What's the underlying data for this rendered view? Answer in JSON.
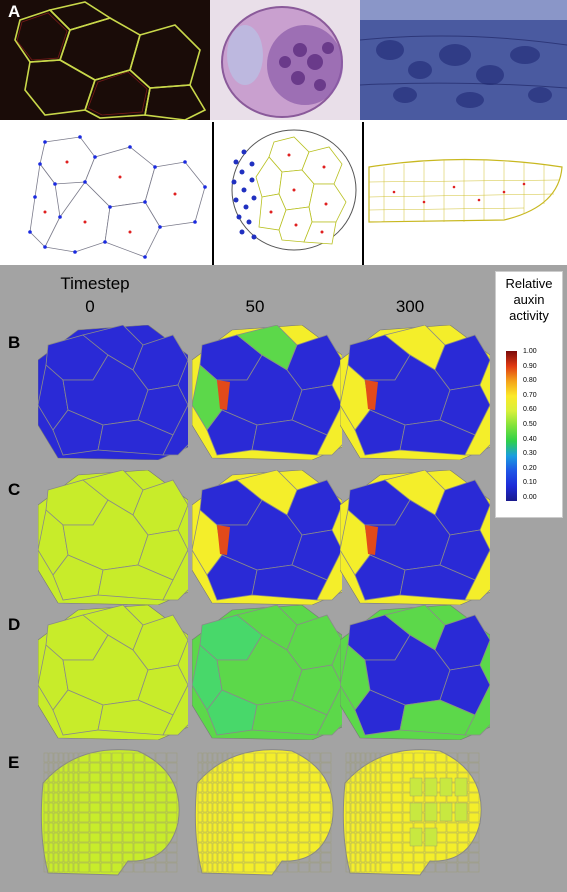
{
  "panel_a": {
    "label": "A"
  },
  "simulation": {
    "timestep_title": "Timestep",
    "timesteps": [
      "0",
      "50",
      "300"
    ],
    "rows": [
      {
        "label": "B",
        "states": [
          "blue",
          "mixed",
          "mixed-yellow"
        ]
      },
      {
        "label": "C",
        "states": [
          "lime",
          "mixed-yellow",
          "mixed-yellow"
        ]
      },
      {
        "label": "D",
        "states": [
          "lime",
          "green",
          "blue-green"
        ]
      },
      {
        "label": "E",
        "states": [
          "lime-meristem",
          "yellow-meristem",
          "yellow-meristem"
        ]
      }
    ]
  },
  "legend": {
    "title_line1": "Relative",
    "title_line2": "auxin",
    "title_line3": "activity",
    "ticks": [
      "1.00",
      "0.90",
      "0.80",
      "0.70",
      "0.60",
      "0.50",
      "0.40",
      "0.30",
      "0.20",
      "0.10",
      "0.00"
    ]
  },
  "colors": {
    "background": "#a3a3a3",
    "blue": "#2a2ad6",
    "lime": "#c8ec2a",
    "yellow": "#f4ee2a",
    "green": "#5cd84a",
    "red": "#e24a1a"
  }
}
